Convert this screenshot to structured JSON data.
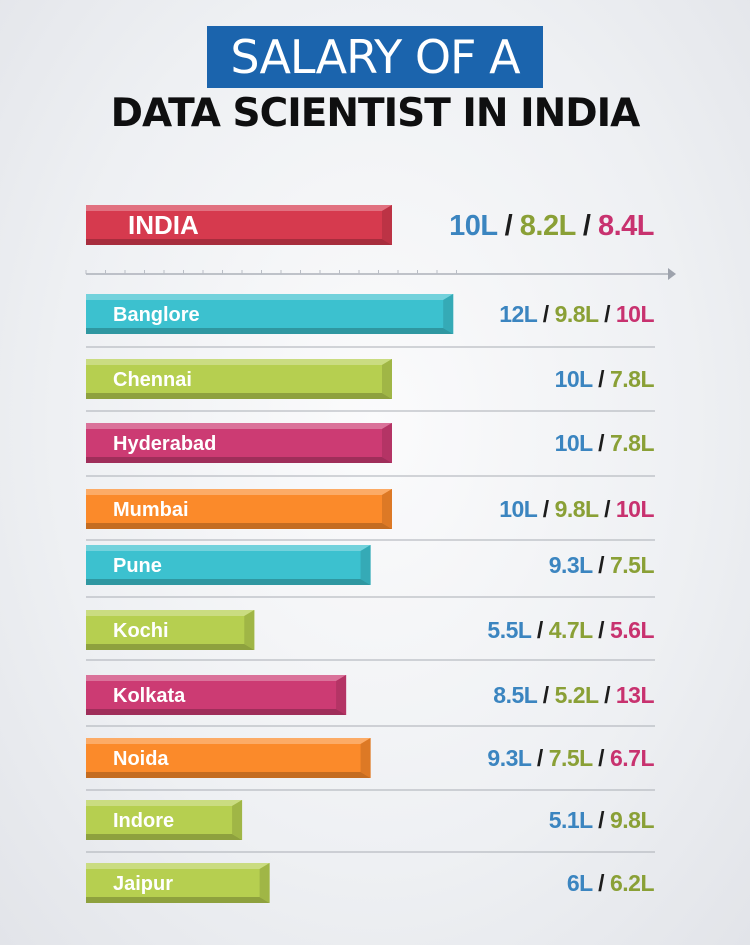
{
  "title_line1": "SALARY OF A",
  "title_line2": "DATA SCIENTIST IN INDIA",
  "colors": {
    "blue": "#3b85c0",
    "green": "#8aa036",
    "pink": "#c8326f",
    "red_bar": "#d63a4e",
    "teal_bar": "#3cc1cf",
    "lime_bar": "#b6cf50",
    "magenta_bar": "#cc3b73",
    "orange_bar": "#fb8a2a"
  },
  "chart_data": {
    "type": "bar",
    "orientation": "horizontal",
    "title": "SALARY OF A DATA SCIENTIST IN INDIA",
    "categories": [
      "INDIA",
      "Banglore",
      "Chennai",
      "Hyderabad",
      "Mumbai",
      "Pune",
      "Kochi",
      "Kolkata",
      "Noida",
      "Indore",
      "Jaipur"
    ],
    "values": [
      10,
      12,
      10,
      10,
      10,
      9.3,
      5.5,
      8.5,
      9.3,
      5.1,
      6
    ],
    "bar_colors": [
      "red",
      "teal",
      "lime",
      "magenta",
      "orange",
      "teal",
      "lime",
      "magenta",
      "orange",
      "lime",
      "lime"
    ],
    "labels": [
      [
        "10L",
        "8.2L",
        "8.4L"
      ],
      [
        "12L",
        "9.8L",
        "10L"
      ],
      [
        "10L",
        "7.8L"
      ],
      [
        "10L",
        "7.8L"
      ],
      [
        "10L",
        "9.8L",
        "10L"
      ],
      [
        "9.3L",
        "7.5L"
      ],
      [
        "5.5L",
        "4.7L",
        "5.6L"
      ],
      [
        "8.5L",
        "5.2L",
        "13L"
      ],
      [
        "9.3L",
        "7.5L",
        "6.7L"
      ],
      [
        "5.1L",
        "9.8L"
      ],
      [
        "6L",
        "6.2L"
      ]
    ],
    "separator": " / ",
    "grid": true
  }
}
